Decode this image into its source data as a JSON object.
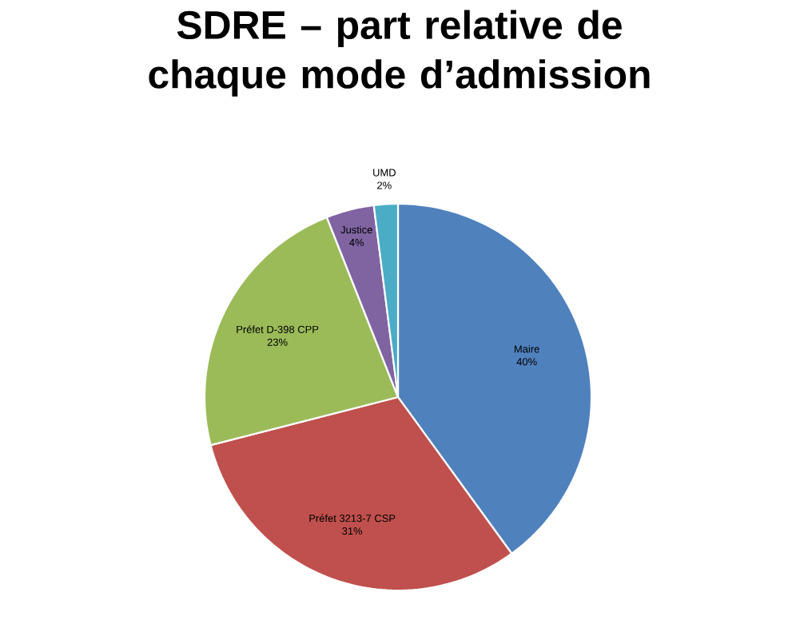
{
  "chart_data": {
    "type": "pie",
    "title": "SDRE – part relative de chaque mode d’admission",
    "categories": [
      "Maire",
      "Préfet 3213-7 CSP",
      "Préfet D-398 CPP",
      "Justice",
      "UMD"
    ],
    "values": [
      40,
      31,
      23,
      4,
      2
    ],
    "value_labels": [
      "40%",
      "31%",
      "23%",
      "4%",
      "2%"
    ],
    "colors": [
      "#4f81bd",
      "#c0504d",
      "#9bbb59",
      "#8064a2",
      "#4bacc6"
    ]
  }
}
